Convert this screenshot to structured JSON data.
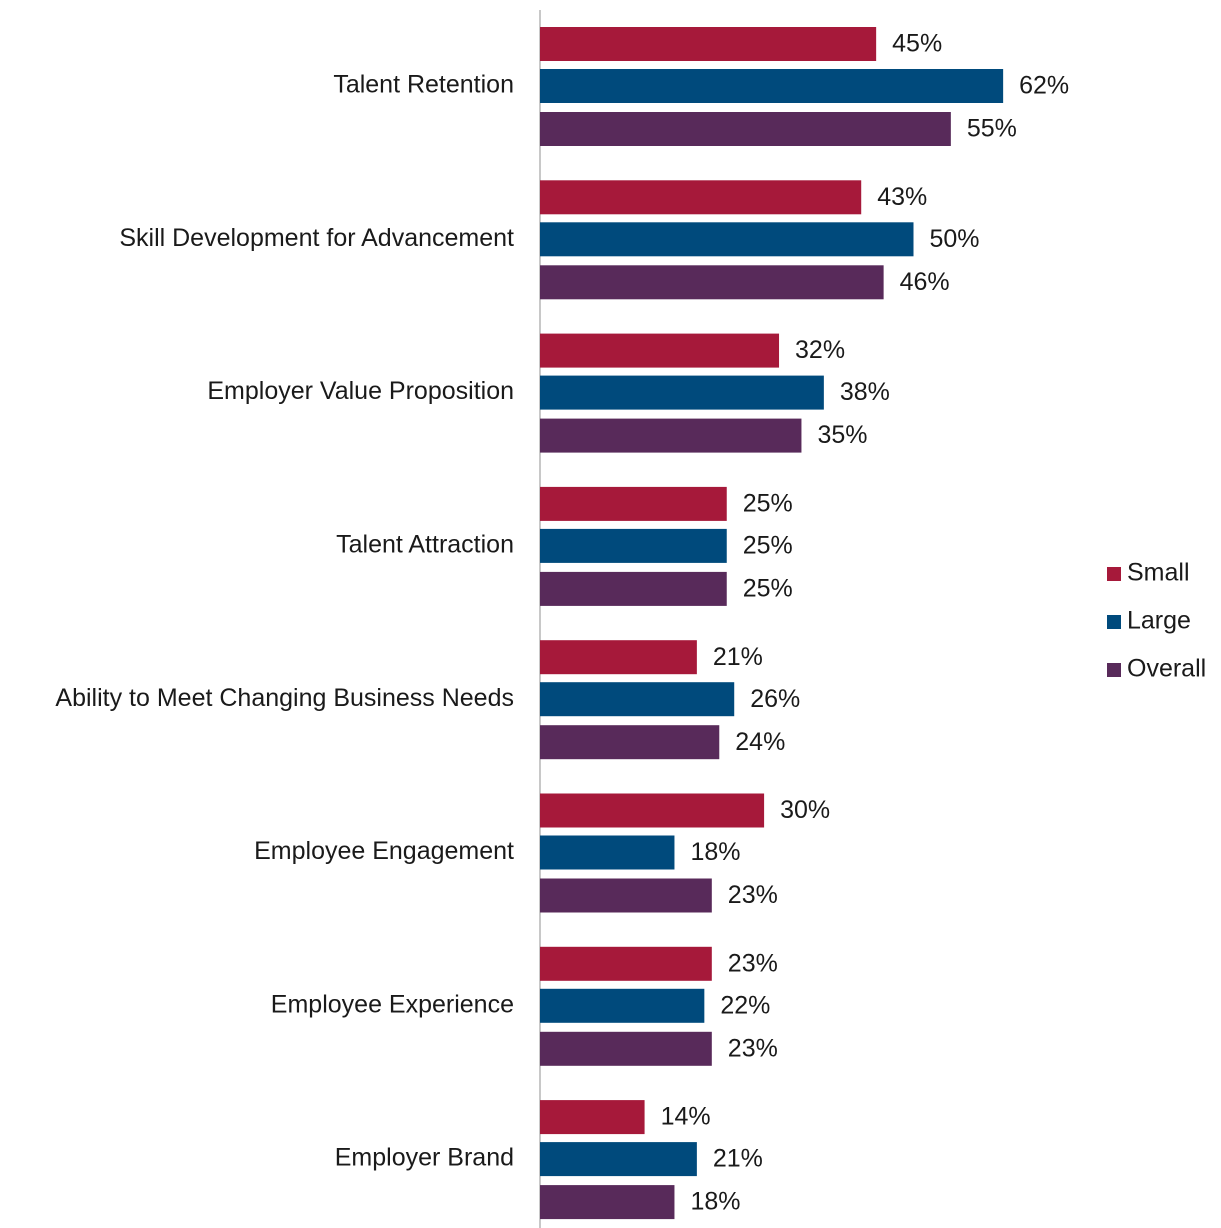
{
  "chart_data": {
    "type": "bar",
    "orientation": "horizontal",
    "categories": [
      "Talent Retention",
      "Skill Development for Advancement",
      "Employer Value Proposition",
      "Talent Attraction",
      "Ability to Meet Changing Business Needs",
      "Employee Engagement",
      "Employee Experience",
      "Employer Brand"
    ],
    "series": [
      {
        "name": "Small",
        "color": "#a6193a",
        "values": [
          45,
          43,
          32,
          25,
          21,
          30,
          23,
          14
        ],
        "value_labels": [
          "45%",
          "43%",
          "32%",
          "25%",
          "21%",
          "30%",
          "23%",
          "14%"
        ]
      },
      {
        "name": "Large",
        "color": "#004a7c",
        "values": [
          62,
          50,
          38,
          25,
          26,
          18,
          22,
          21
        ],
        "value_labels": [
          "62%",
          "50%",
          "38%",
          "25%",
          "26%",
          "18%",
          "22%",
          "21%"
        ]
      },
      {
        "name": "Overall",
        "color": "#582a5a",
        "values": [
          55,
          46,
          35,
          25,
          24,
          23,
          23,
          18
        ],
        "value_labels": [
          "55%",
          "46%",
          "35%",
          "25%",
          "24%",
          "23%",
          "23%",
          "18%"
        ]
      }
    ],
    "legend": "right"
  }
}
